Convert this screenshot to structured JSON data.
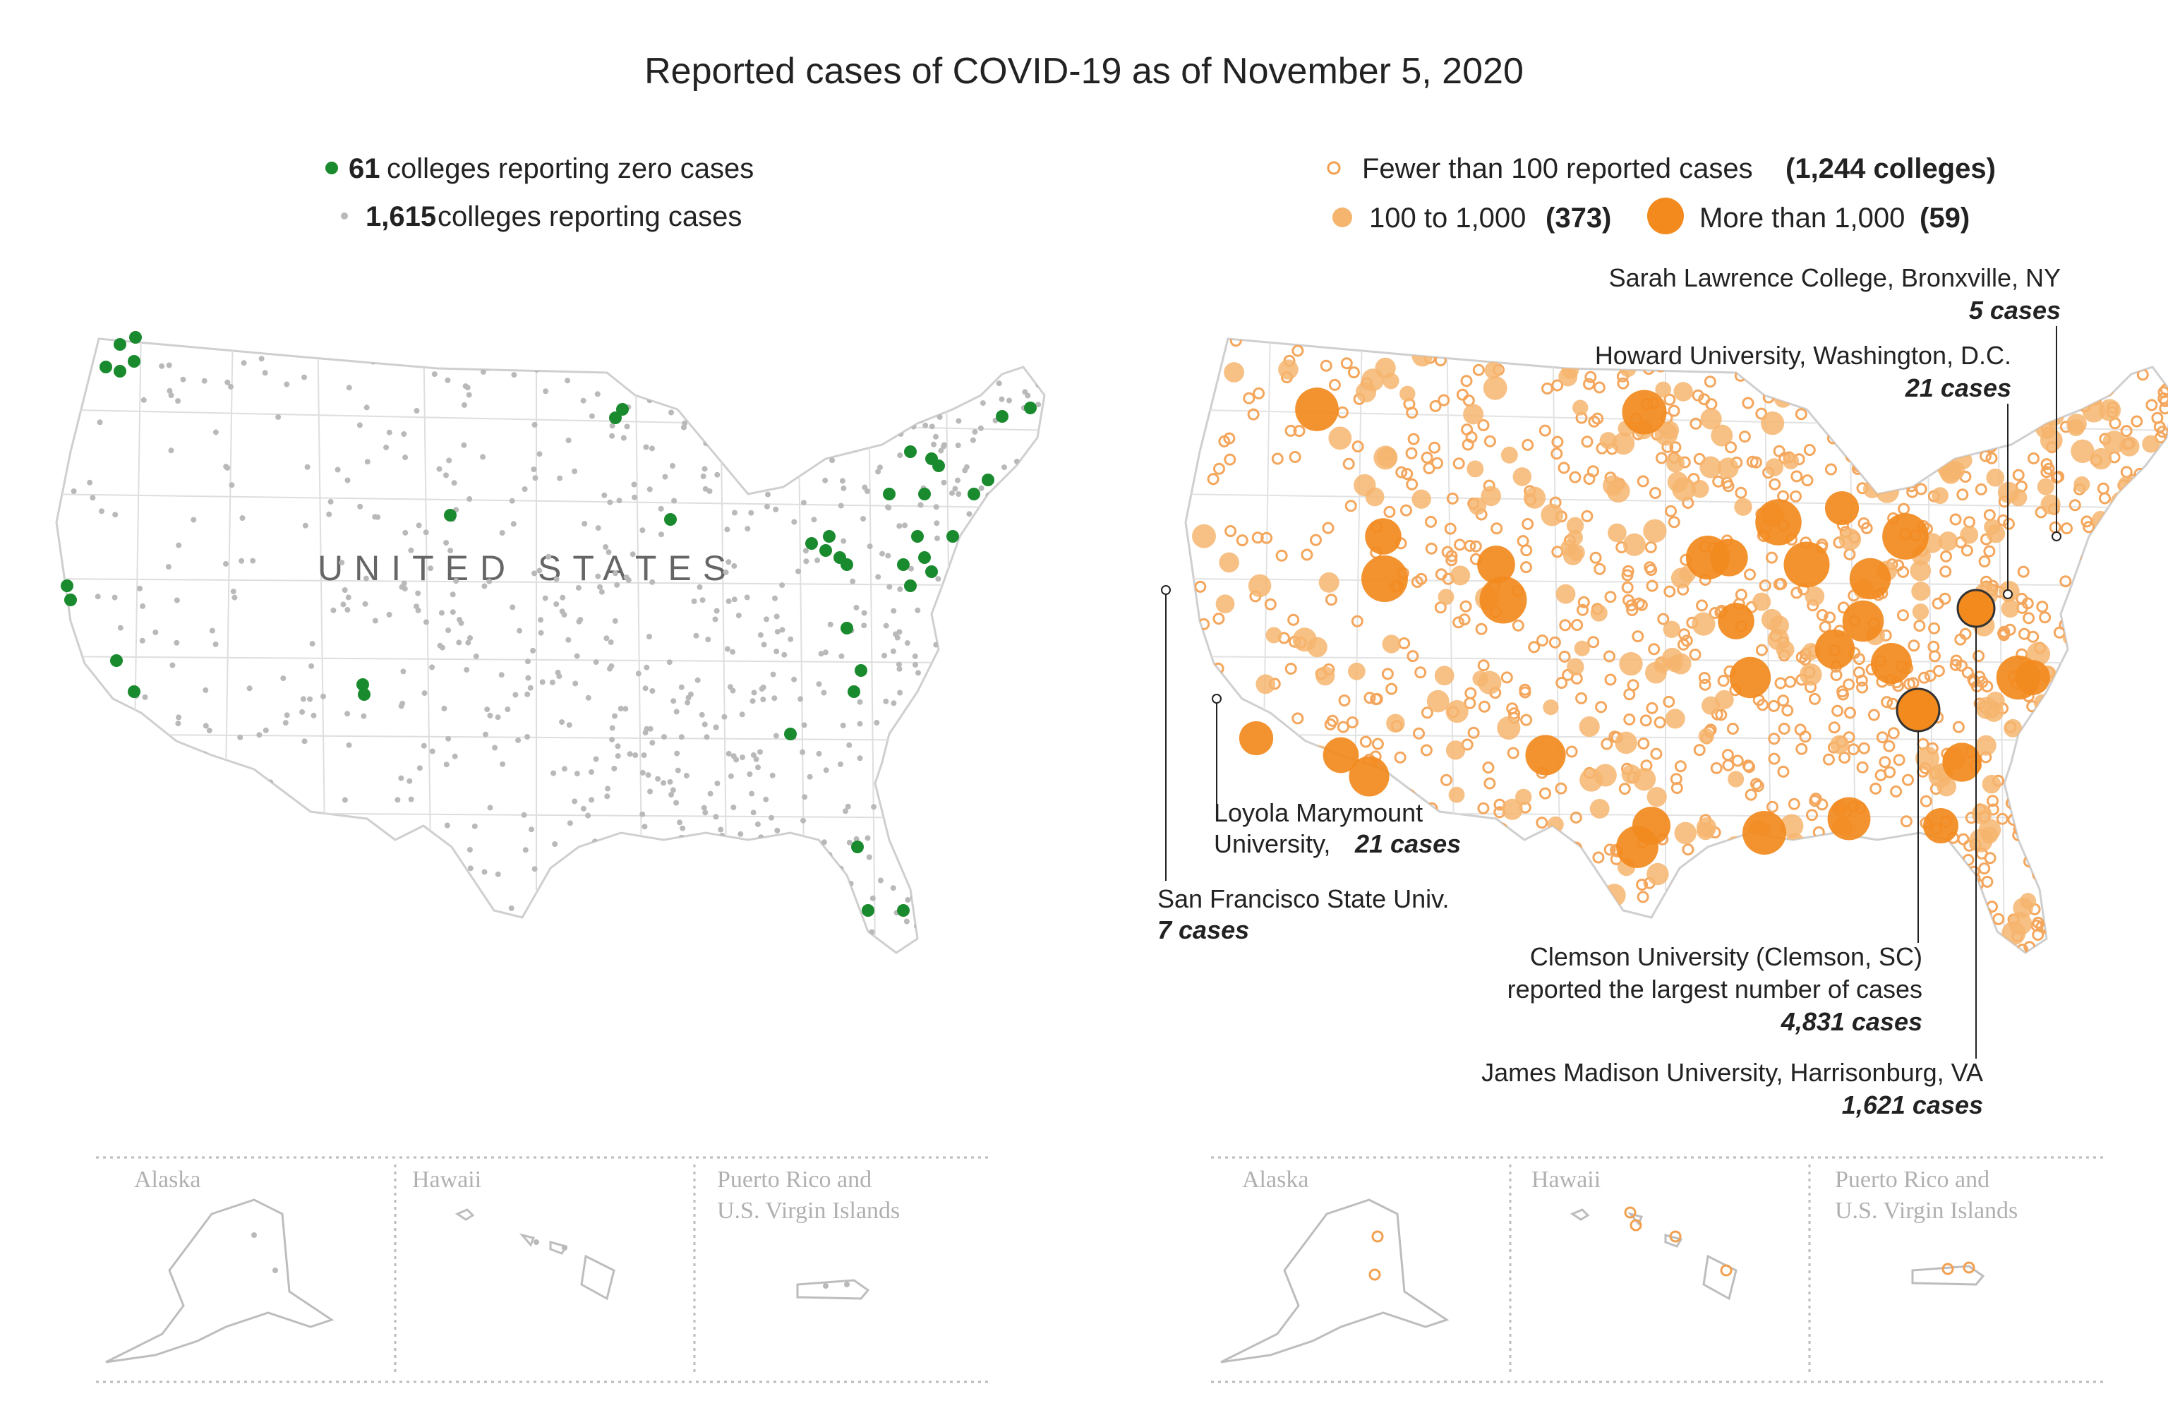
{
  "title": "Reported cases of COVID-19 as of November 5, 2020",
  "colors": {
    "zero": "#1a8a2e",
    "reporting": "#b9b9b9",
    "orange": "#f28a1e",
    "orange_light": "#f6b56e",
    "state_line": "#d9d9d9",
    "text": "#222222",
    "muted": "#b0b0b0"
  },
  "left_legend": {
    "zero": {
      "count": "61",
      "label": "colleges reporting zero cases"
    },
    "reporting": {
      "count": "1,615",
      "label": "colleges reporting cases"
    }
  },
  "right_legend": {
    "small": {
      "label": "Fewer than 100 reported cases",
      "count": "(1,244 colleges)"
    },
    "medium": {
      "label": "100 to 1,000",
      "count": "(373)"
    },
    "large": {
      "label": "More than 1,000",
      "count": "(59)"
    }
  },
  "country_label": "UNITED STATES",
  "annotations": {
    "sarah_lawrence": {
      "name": "Sarah Lawrence College, Bronxville, NY",
      "cases": "5 cases"
    },
    "howard": {
      "name": "Howard University, Washington, D.C.",
      "cases": "21 cases"
    },
    "loyola_1": "Loyola Marymount",
    "loyola_2": "University,",
    "loyola_cases": "21 cases",
    "sfsu": {
      "name": "San Francisco State Univ.",
      "cases": "7 cases"
    },
    "clemson_1": "Clemson University (Clemson, SC)",
    "clemson_2": "reported the largest number of cases",
    "clemson_cases": "4,831 cases",
    "jmu": {
      "name": "James Madison University, Harrisonburg, VA",
      "cases": "1,621 cases"
    }
  },
  "insets": {
    "alaska": "Alaska",
    "hawaii": "Hawaii",
    "pr_1": "Puerto Rico and",
    "pr_2": "U.S. Virgin Islands"
  },
  "map_data": {
    "zero_case_colleges_plotted": 61,
    "colleges_reporting_cases": 1615,
    "case_buckets": [
      {
        "label": "Fewer than 100",
        "colleges": 1244
      },
      {
        "label": "100 to 1,000",
        "colleges": 373
      },
      {
        "label": "More than 1,000",
        "colleges": 59
      }
    ],
    "highlighted": [
      {
        "college": "Clemson University",
        "cases": 4831
      },
      {
        "college": "James Madison University",
        "cases": 1621
      },
      {
        "college": "Howard University",
        "cases": 21
      },
      {
        "college": "Loyola Marymount University",
        "cases": 21
      },
      {
        "college": "San Francisco State Univ.",
        "cases": 7
      },
      {
        "college": "Sarah Lawrence College",
        "cases": 5
      }
    ]
  }
}
